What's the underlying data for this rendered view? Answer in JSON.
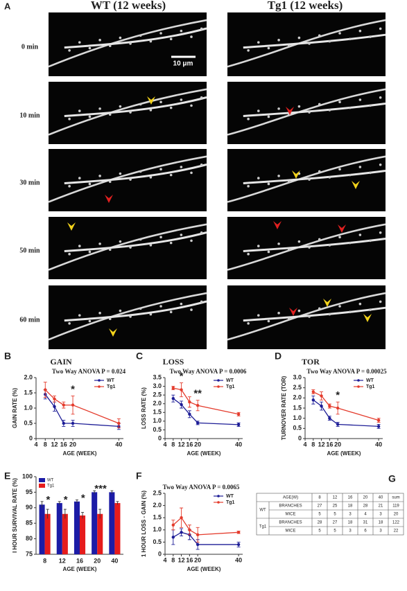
{
  "panel_a": {
    "label": "A",
    "columns": [
      "WT (12 weeks)",
      "Tg1 (12 weeks)"
    ],
    "rows": [
      "0 min",
      "10 min",
      "30 min",
      "50 min",
      "60 min"
    ],
    "scale_bar": "10 μm"
  },
  "chart_data": [
    {
      "type": "line",
      "label": "B",
      "title": "GAIN",
      "subtitle": "Two Way ANOVA P = 0.024",
      "x_label": "AGE (WEEK)",
      "y_label": "GAIN RATE (%)",
      "x": [
        8,
        12,
        16,
        20,
        40
      ],
      "xlim": [
        4,
        42
      ],
      "xticks": [
        4,
        8,
        12,
        16,
        20,
        40
      ],
      "ylim": [
        0,
        2
      ],
      "yticks": [
        0,
        0.5,
        {
          "value": 1,
          "label": "1.0"
        },
        1.5,
        {
          "value": 2,
          "label": "2.0"
        }
      ],
      "series": [
        {
          "name": "WT",
          "color": "#1c1c96",
          "values": [
            1.45,
            1.05,
            0.5,
            0.5,
            0.4
          ],
          "errors": [
            0.15,
            0.15,
            0.1,
            0.1,
            0.1
          ]
        },
        {
          "name": "Tg1",
          "color": "#e43b2c",
          "values": [
            1.6,
            1.3,
            1.1,
            1.1,
            0.5
          ],
          "errors": [
            0.25,
            0.1,
            0.1,
            0.3,
            0.15
          ]
        }
      ],
      "annotations": [
        null,
        null,
        null,
        "*",
        null
      ]
    },
    {
      "type": "line",
      "label": "C",
      "title": "LOSS",
      "subtitle": "Two Way ANOVA P = 0.0006",
      "x_label": "AGE (WEEK)",
      "y_label": "LOSS RATE (%)",
      "x": [
        8,
        12,
        16,
        20,
        40
      ],
      "xlim": [
        4,
        42
      ],
      "xticks": [
        4,
        8,
        12,
        16,
        20,
        40
      ],
      "ylim": [
        0,
        3.5
      ],
      "yticks": [
        0,
        0.5,
        {
          "value": 1,
          "label": "1.0"
        },
        1.5,
        {
          "value": 2,
          "label": "2.0"
        },
        2.5,
        {
          "value": 3,
          "label": "3.0"
        },
        3.5
      ],
      "series": [
        {
          "name": "WT",
          "color": "#1c1c96",
          "values": [
            2.3,
            1.95,
            1.4,
            0.9,
            0.8
          ],
          "errors": [
            0.2,
            0.2,
            0.2,
            0.1,
            0.1
          ]
        },
        {
          "name": "Tg1",
          "color": "#e43b2c",
          "values": [
            2.9,
            2.8,
            2.1,
            1.9,
            1.4
          ],
          "errors": [
            0.1,
            0.4,
            0.3,
            0.3,
            0.1
          ]
        }
      ],
      "annotations": [
        null,
        "*",
        null,
        "**",
        null
      ]
    },
    {
      "type": "line",
      "label": "D",
      "title": "TOR",
      "subtitle": "Two Way ANOVA P = 0.00025",
      "x_label": "AGE (WEEK)",
      "y_label": "TURNOVER RATE (TOR)",
      "x": [
        8,
        12,
        16,
        20,
        40
      ],
      "xlim": [
        4,
        42
      ],
      "xticks": [
        4,
        8,
        12,
        16,
        20,
        40
      ],
      "ylim": [
        0,
        3
      ],
      "yticks": [
        0,
        0.5,
        {
          "value": 1,
          "label": "1.0"
        },
        1.5,
        {
          "value": 2,
          "label": "2.0"
        },
        2.5,
        {
          "value": 3,
          "label": "3.0"
        }
      ],
      "series": [
        {
          "name": "WT",
          "color": "#1c1c96",
          "values": [
            1.9,
            1.6,
            1.0,
            0.7,
            0.6
          ],
          "errors": [
            0.2,
            0.2,
            0.1,
            0.1,
            0.1
          ]
        },
        {
          "name": "Tg1",
          "color": "#e43b2c",
          "values": [
            2.3,
            2.1,
            1.6,
            1.5,
            0.9
          ],
          "errors": [
            0.1,
            0.2,
            0.1,
            0.3,
            0.1
          ]
        }
      ],
      "annotations": [
        null,
        null,
        null,
        "*",
        null
      ]
    },
    {
      "type": "bar",
      "label": "E",
      "x_label": "AGE (WEEK)",
      "y_label": "I HOUR SURVIVAL RATE (%)",
      "categories": [
        "8",
        "12",
        "16",
        "20",
        "40"
      ],
      "ylim": [
        75,
        100
      ],
      "yticks": [
        75,
        80,
        85,
        90,
        95,
        100
      ],
      "series": [
        {
          "name": "WT",
          "color": "#1c1ca6",
          "values": [
            91,
            91.5,
            92,
            95,
            95
          ],
          "errors": [
            1,
            0.5,
            0.5,
            0.5,
            0.5
          ]
        },
        {
          "name": "Tg1",
          "color": "#e61c1c",
          "values": [
            88,
            88,
            87.5,
            88,
            91.5
          ],
          "errors": [
            1.5,
            1.5,
            1,
            1.5,
            0.5
          ]
        }
      ],
      "annotations": [
        "*",
        "*",
        "*",
        "***",
        null
      ]
    },
    {
      "type": "line",
      "label": "F",
      "subtitle": "Two Way ANOVA P = 0.0065",
      "x_label": "AGE (WEEK)",
      "y_label": "1 HOUR LOSS - GAIN (%)",
      "x": [
        8,
        12,
        16,
        20,
        40
      ],
      "xlim": [
        4,
        42
      ],
      "xticks": [
        4,
        8,
        12,
        16,
        20,
        40
      ],
      "ylim": [
        0,
        2.5
      ],
      "yticks": [
        0,
        0.5,
        {
          "value": 1,
          "label": "1.0"
        },
        1.5,
        {
          "value": 2,
          "label": "2.0"
        },
        2.5
      ],
      "series": [
        {
          "name": "WT",
          "color": "#1c1c96",
          "values": [
            0.7,
            0.9,
            0.8,
            0.4,
            0.4
          ],
          "errors": [
            0.3,
            0.15,
            0.2,
            0.2,
            0.1
          ]
        },
        {
          "name": "Tg1",
          "color": "#e43b2c",
          "values": [
            1.2,
            1.5,
            1.0,
            0.8,
            0.9
          ],
          "errors": [
            0.2,
            0.4,
            0.2,
            0.3,
            0.05
          ]
        }
      ],
      "annotations": [
        null,
        null,
        null,
        null,
        null
      ]
    }
  ],
  "table_g": {
    "label": "G",
    "header": [
      "AGE(W)",
      "8",
      "12",
      "16",
      "20",
      "40",
      "sum"
    ],
    "groups": [
      {
        "name": "WT",
        "rows": [
          [
            "BRANCHES",
            27,
            25,
            18,
            28,
            21,
            119
          ],
          [
            "MICE",
            5,
            5,
            3,
            4,
            3,
            20
          ]
        ]
      },
      {
        "name": "Tg1",
        "rows": [
          [
            "BRANCHES",
            28,
            27,
            18,
            31,
            18,
            122
          ],
          [
            "MICE",
            5,
            5,
            3,
            6,
            3,
            22
          ]
        ]
      }
    ]
  }
}
